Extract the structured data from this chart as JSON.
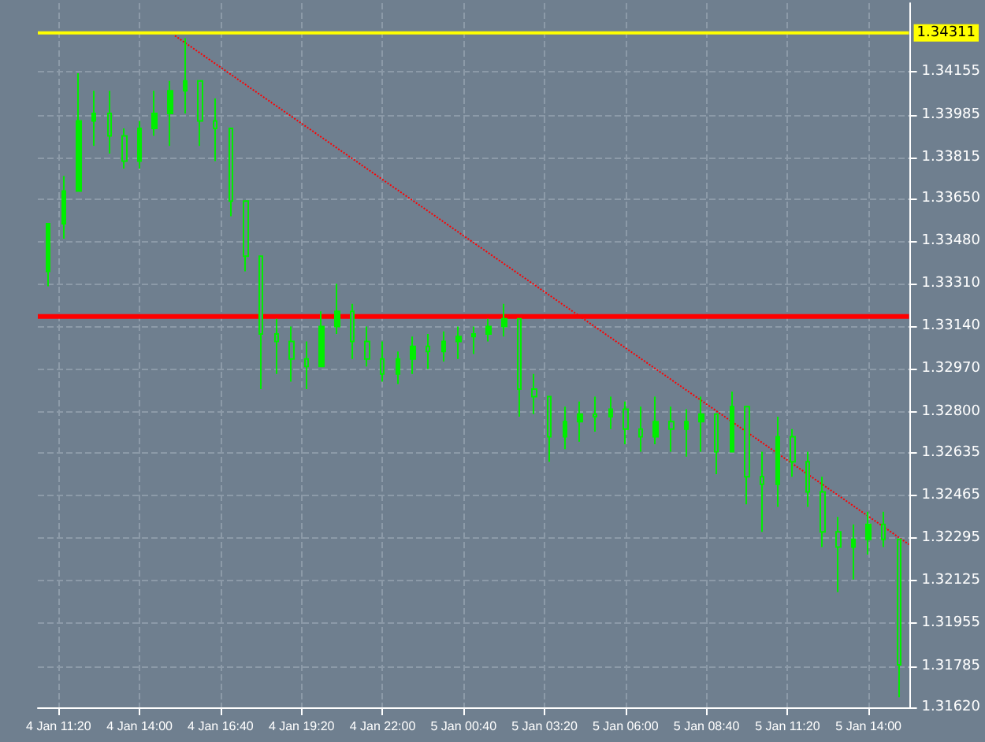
{
  "chart_data": {
    "type": "candlestick",
    "color": "#00ee00",
    "x": [
      "--01-04T11:00",
      "--01-04T11:30",
      "--01-04T12:00",
      "--01-04T12:30",
      "--01-04T13:00",
      "--01-04T13:30",
      "--01-04T14:00",
      "--01-04T14:30",
      "--01-04T15:00",
      "--01-04T15:30",
      "--01-04T16:00",
      "--01-04T16:30",
      "--01-04T17:00",
      "--01-04T17:30",
      "--01-04T18:00",
      "--01-04T18:30",
      "--01-04T19:00",
      "--01-04T19:30",
      "--01-04T20:00",
      "--01-04T20:30",
      "--01-04T21:00",
      "--01-04T21:30",
      "--01-04T22:00",
      "--01-04T22:30",
      "--01-04T23:00",
      "--01-04T23:30",
      "--01-05T00:00",
      "--01-05T00:30",
      "--01-05T01:00",
      "--01-05T01:30",
      "--01-05T02:00",
      "--01-05T02:30",
      "--01-05T03:00",
      "--01-05T03:30",
      "--01-05T04:00",
      "--01-05T04:30",
      "--01-05T05:00",
      "--01-05T05:30",
      "--01-05T06:00",
      "--01-05T06:30",
      "--01-05T07:00",
      "--01-05T07:30",
      "--01-05T08:00",
      "--01-05T08:30",
      "--01-05T09:00",
      "--01-05T09:30",
      "--01-05T10:00",
      "--01-05T10:30",
      "--01-05T11:00",
      "--01-05T11:30",
      "--01-05T12:00",
      "--01-05T12:30",
      "--01-05T13:00",
      "--01-05T13:30",
      "--01-05T14:00",
      "--01-05T14:30",
      "--01-05T15:00"
    ],
    "ohlc": [
      [
        1.3336,
        1.3355,
        1.333,
        1.3355
      ],
      [
        1.3355,
        1.3374,
        1.3349,
        1.3368
      ],
      [
        1.3368,
        1.3415,
        1.3368,
        1.3396
      ],
      [
        1.3396,
        1.3408,
        1.3386,
        1.3399
      ],
      [
        1.3399,
        1.3408,
        1.3383,
        1.339
      ],
      [
        1.339,
        1.3393,
        1.3377,
        1.338
      ],
      [
        1.338,
        1.3396,
        1.3377,
        1.3393
      ],
      [
        1.3393,
        1.3408,
        1.339,
        1.3399
      ],
      [
        1.3399,
        1.3412,
        1.3386,
        1.3408
      ],
      [
        1.3408,
        1.3429,
        1.3399,
        1.3412
      ],
      [
        1.3412,
        1.3412,
        1.3386,
        1.3396
      ],
      [
        1.3396,
        1.3405,
        1.338,
        1.3393
      ],
      [
        1.3393,
        1.3393,
        1.3358,
        1.3364
      ],
      [
        1.3364,
        1.3364,
        1.3336,
        1.3342
      ],
      [
        1.3342,
        1.3342,
        1.3289,
        1.3311
      ],
      [
        1.3311,
        1.3317,
        1.3295,
        1.3308
      ],
      [
        1.3308,
        1.3314,
        1.3292,
        1.3301
      ],
      [
        1.3301,
        1.3308,
        1.3289,
        1.3298
      ],
      [
        1.3298,
        1.332,
        1.3298,
        1.3314
      ],
      [
        1.3314,
        1.3331,
        1.3311,
        1.332
      ],
      [
        1.332,
        1.3323,
        1.3301,
        1.3308
      ],
      [
        1.3308,
        1.3314,
        1.3298,
        1.3301
      ],
      [
        1.3301,
        1.3308,
        1.3292,
        1.3295
      ],
      [
        1.3295,
        1.3304,
        1.3291,
        1.3301
      ],
      [
        1.3301,
        1.331,
        1.3295,
        1.3306
      ],
      [
        1.3306,
        1.3311,
        1.3297,
        1.3304
      ],
      [
        1.3304,
        1.3312,
        1.33,
        1.3308
      ],
      [
        1.3308,
        1.3314,
        1.3301,
        1.331
      ],
      [
        1.331,
        1.3314,
        1.3303,
        1.3311
      ],
      [
        1.3311,
        1.3317,
        1.3308,
        1.3314
      ],
      [
        1.3314,
        1.3323,
        1.331,
        1.3317
      ],
      [
        1.3317,
        1.3317,
        1.3278,
        1.3289
      ],
      [
        1.3289,
        1.3295,
        1.3279,
        1.3286
      ],
      [
        1.3286,
        1.3286,
        1.326,
        1.327
      ],
      [
        1.327,
        1.3282,
        1.3265,
        1.3276
      ],
      [
        1.3276,
        1.3284,
        1.3268,
        1.3279
      ],
      [
        1.3279,
        1.3286,
        1.3272,
        1.3278
      ],
      [
        1.3278,
        1.3286,
        1.3273,
        1.3281
      ],
      [
        1.3281,
        1.3284,
        1.3267,
        1.3273
      ],
      [
        1.3273,
        1.3282,
        1.3264,
        1.327
      ],
      [
        1.327,
        1.3286,
        1.3267,
        1.3276
      ],
      [
        1.3276,
        1.3282,
        1.3264,
        1.3273
      ],
      [
        1.3273,
        1.3281,
        1.3262,
        1.3276
      ],
      [
        1.3276,
        1.3286,
        1.3264,
        1.3279
      ],
      [
        1.3279,
        1.3279,
        1.3255,
        1.3264
      ],
      [
        1.3264,
        1.3288,
        1.3264,
        1.3282
      ],
      [
        1.3282,
        1.3282,
        1.3243,
        1.3254
      ],
      [
        1.3254,
        1.3264,
        1.3232,
        1.3251
      ],
      [
        1.3251,
        1.3278,
        1.3242,
        1.327
      ],
      [
        1.327,
        1.3273,
        1.3254,
        1.326
      ],
      [
        1.326,
        1.3264,
        1.3242,
        1.3248
      ],
      [
        1.3248,
        1.3254,
        1.3226,
        1.3232
      ],
      [
        1.3232,
        1.3238,
        1.3208,
        1.3226
      ],
      [
        1.3226,
        1.3235,
        1.3213,
        1.3229
      ],
      [
        1.3229,
        1.324,
        1.3223,
        1.3235
      ],
      [
        1.3235,
        1.324,
        1.3226,
        1.3229
      ],
      [
        1.3229,
        1.3229,
        1.3166,
        1.3179
      ]
    ],
    "series": [
      {
        "type": "line",
        "color": "#ff0000",
        "line_style": "dotted",
        "x": [
          "--01-04T15:10",
          "--01-05T15:20"
        ],
        "values": [
          1.343,
          1.3227
        ]
      }
    ],
    "xlim": [
      "--01-04T10:39",
      "--01-05T15:20"
    ],
    "xticks": [
      {
        "value": "--01-04T11:20",
        "label": "4 Jan 11:20"
      },
      {
        "value": "--01-04T14:00",
        "label": "4 Jan 14:00"
      },
      {
        "value": "--01-04T16:40",
        "label": "4 Jan 16:40"
      },
      {
        "value": "--01-04T19:20",
        "label": "4 Jan 19:20"
      },
      {
        "value": "--01-04T22:00",
        "label": "4 Jan 22:00"
      },
      {
        "value": "--01-05T00:40",
        "label": "5 Jan 00:40"
      },
      {
        "value": "--01-05T03:20",
        "label": "5 Jan 03:20"
      },
      {
        "value": "--01-05T06:00",
        "label": "5 Jan 06:00"
      },
      {
        "value": "--01-05T08:40",
        "label": "5 Jan 08:40"
      },
      {
        "value": "--01-05T11:20",
        "label": "5 Jan 11:20"
      },
      {
        "value": "--01-05T14:00",
        "label": "5 Jan 14:00"
      }
    ],
    "ylim": [
      1.3162,
      1.3443
    ],
    "yticks": [
      1.34155,
      1.33985,
      1.33815,
      {
        "value": 1.3365,
        "label": "1.33650"
      },
      {
        "value": 1.3348,
        "label": "1.33480"
      },
      {
        "value": 1.3331,
        "label": "1.33310"
      },
      {
        "value": 1.3314,
        "label": "1.33140"
      },
      {
        "value": 1.3297,
        "label": "1.32970"
      },
      {
        "value": 1.328,
        "label": "1.32800"
      },
      1.32635,
      1.32465,
      1.32295,
      1.32125,
      1.31955,
      1.31785,
      {
        "value": 1.3162,
        "label": "1.31620"
      }
    ],
    "ref_lines": [
      {
        "axis": "y",
        "value": 1.34311,
        "label": "1.34311",
        "color": "#ffff00"
      },
      {
        "axis": "y",
        "value": 1.3318,
        "label": null,
        "color": "#ff0000"
      }
    ],
    "grid": true
  }
}
